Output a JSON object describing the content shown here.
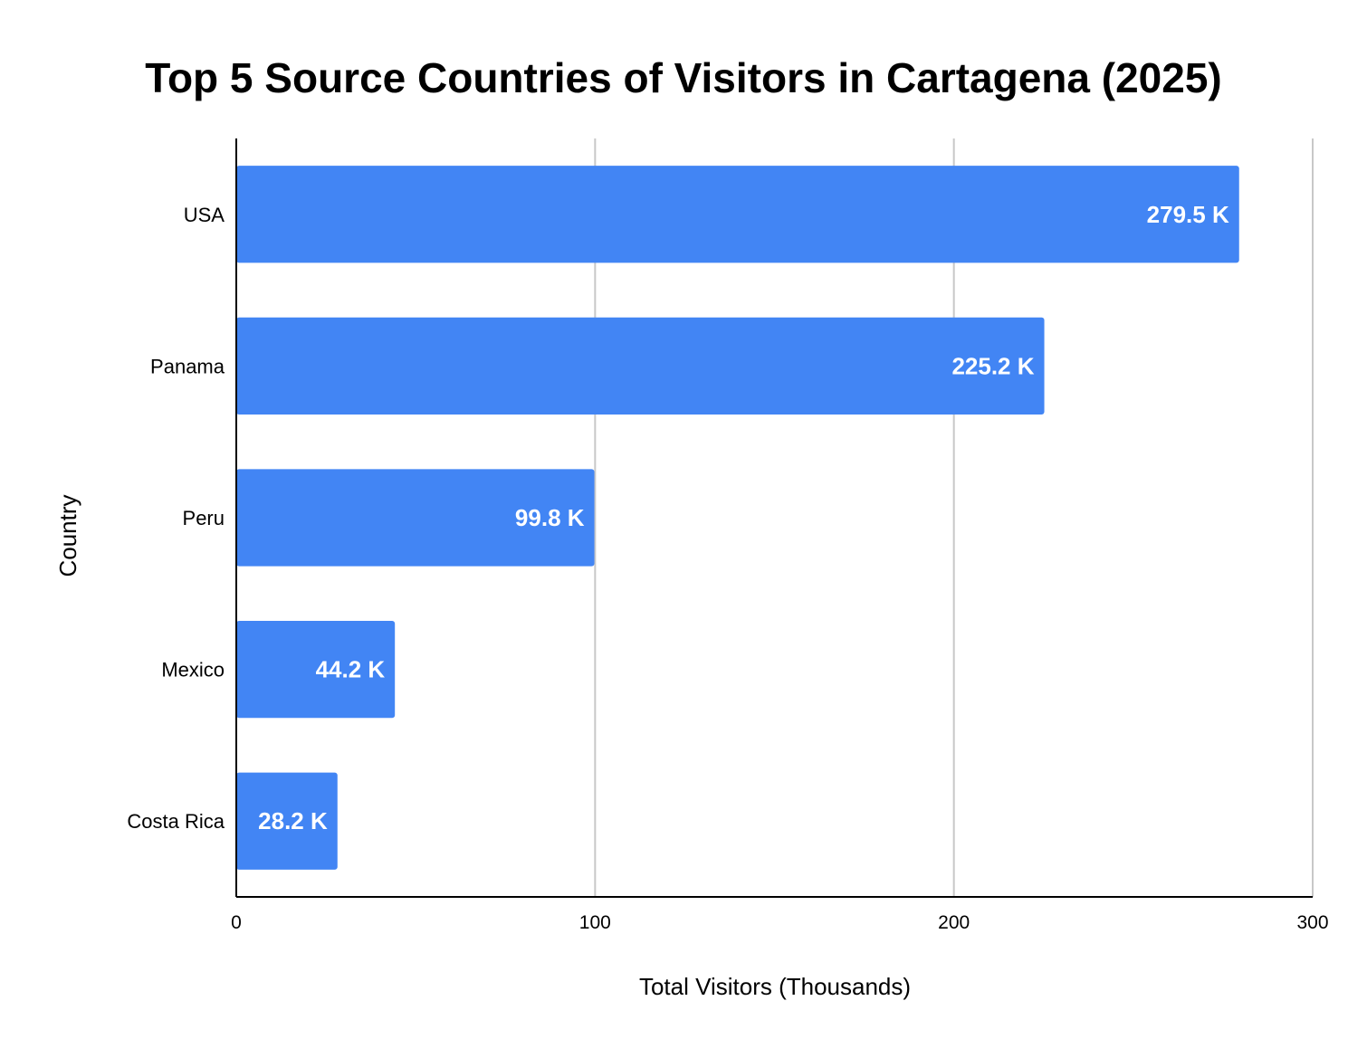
{
  "chart_data": {
    "type": "bar",
    "orientation": "horizontal",
    "title": "Top 5 Source Countries of Visitors in Cartagena (2025)",
    "xlabel": "Total Visitors (Thousands)",
    "ylabel": "Country",
    "categories": [
      "USA",
      "Panama",
      "Peru",
      "Mexico",
      "Costa Rica"
    ],
    "values": [
      279.5,
      225.2,
      99.8,
      44.2,
      28.2
    ],
    "data_labels": [
      "279.5 K",
      "225.2 K",
      "99.8 K",
      "44.2 K",
      "28.2 K"
    ],
    "xlim": [
      0,
      300
    ],
    "xticks": [
      0,
      100,
      200,
      300
    ],
    "grid": true,
    "legend": "none",
    "bar_color": "#4285F4"
  }
}
